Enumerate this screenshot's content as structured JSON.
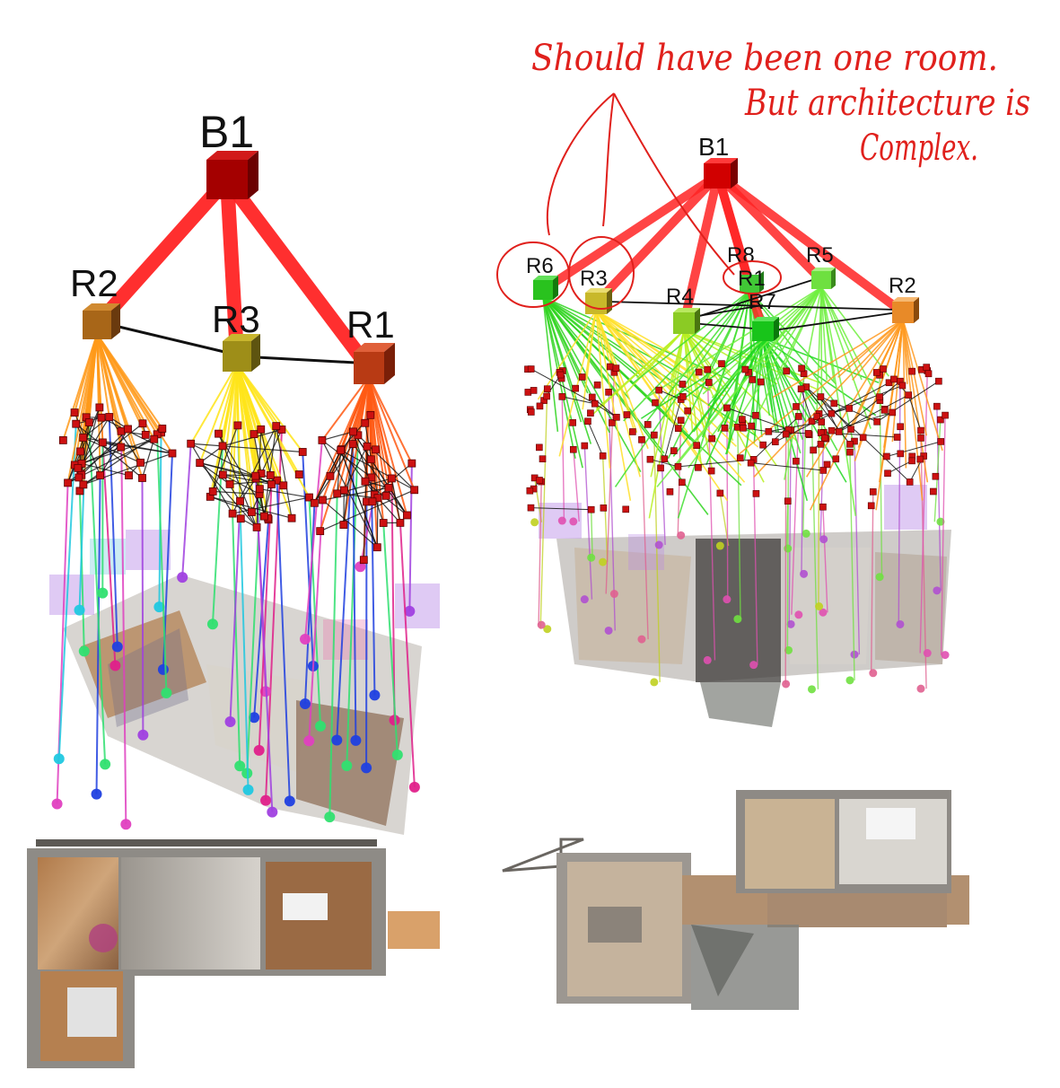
{
  "left_graph": {
    "building_label": "B1",
    "room_labels": [
      "R2",
      "R3",
      "R1"
    ]
  },
  "right_graph": {
    "building_label": "B1",
    "room_labels": [
      "R6",
      "R3",
      "R4",
      "R8",
      "R1",
      "R7",
      "R5",
      "R2"
    ]
  },
  "annotation": {
    "line1": "Should have been one room.",
    "line2": "But architecture is",
    "line3": "Complex."
  },
  "colors": {
    "building_edge": "#ff2424",
    "building_node": "#a40000",
    "room_edge": "#111111",
    "object_node": "#cc1111",
    "annotation_ink": "#e0201c"
  }
}
